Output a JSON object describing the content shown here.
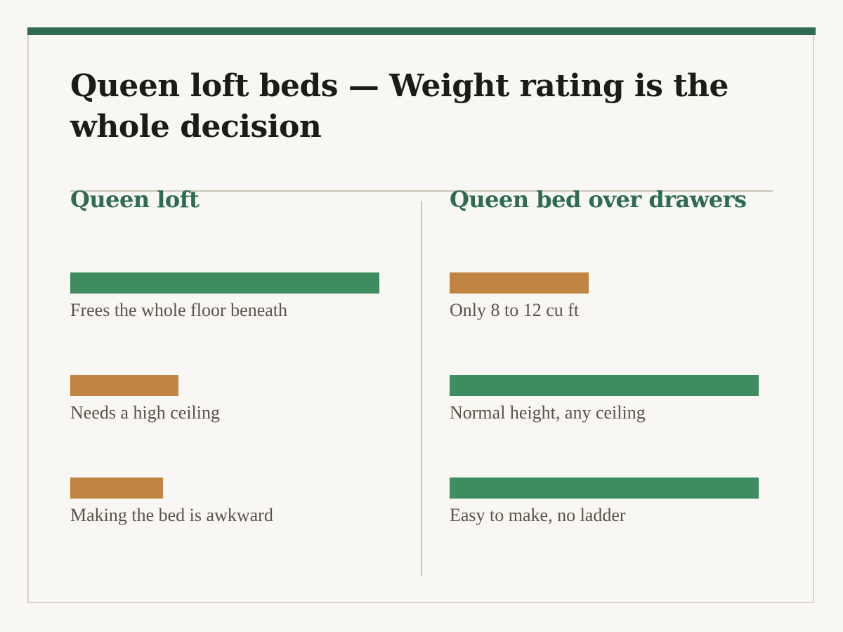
{
  "title": "Queen loft beds — Weight rating is the whole decision",
  "colors": {
    "accent": "#2e6b4f",
    "good": "#3f8c61",
    "bad": "#c08542"
  },
  "columns": [
    {
      "heading": "Queen loft",
      "items": [
        {
          "label": "Frees the whole floor beneath",
          "score": 1.0,
          "tone": "good"
        },
        {
          "label": "Needs a high ceiling",
          "score": 0.35,
          "tone": "bad"
        },
        {
          "label": "Making the bed is awkward",
          "score": 0.3,
          "tone": "bad"
        }
      ]
    },
    {
      "heading": "Queen bed over drawers",
      "items": [
        {
          "label": "Only 8 to 12 cu ft",
          "score": 0.45,
          "tone": "bad"
        },
        {
          "label": "Normal height, any ceiling",
          "score": 1.0,
          "tone": "good"
        },
        {
          "label": "Easy to make, no ladder",
          "score": 1.0,
          "tone": "good"
        }
      ]
    }
  ]
}
